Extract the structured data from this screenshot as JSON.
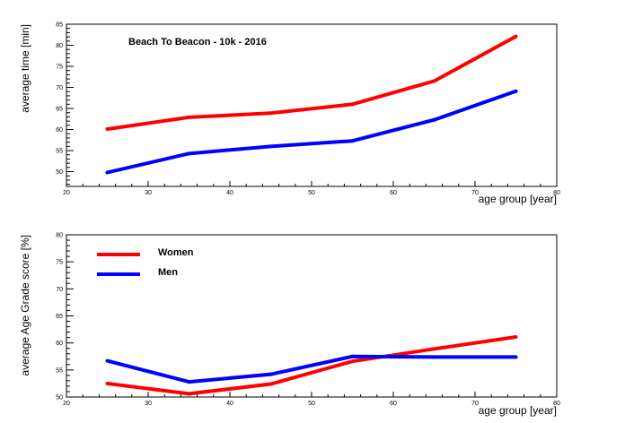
{
  "chart_data": [
    {
      "type": "line",
      "title": "Beach To Beacon - 10k - 2016",
      "xlabel": "age group [year]",
      "ylabel": "average time [min]",
      "xlim": [
        20,
        80
      ],
      "ylim": [
        46.5,
        85
      ],
      "xticks": [
        20,
        30,
        40,
        50,
        60,
        70,
        80
      ],
      "yticks": [
        50,
        55,
        60,
        65,
        70,
        75,
        80,
        85
      ],
      "x": [
        25,
        35,
        45,
        55,
        65,
        75
      ],
      "series": [
        {
          "values": [
            60.1,
            62.9,
            63.9,
            66.0,
            71.5,
            82.1
          ],
          "color": "#ff0000"
        },
        {
          "values": [
            49.8,
            54.3,
            56.0,
            57.3,
            62.3,
            69.1
          ],
          "color": "#0000ff"
        }
      ],
      "grid": false
    },
    {
      "type": "line",
      "title": "",
      "xlabel": "age group [year]",
      "ylabel": "average Age Grade score [%]",
      "xlim": [
        20,
        80
      ],
      "ylim": [
        50,
        80
      ],
      "xticks": [
        20,
        30,
        40,
        50,
        60,
        70,
        80
      ],
      "yticks": [
        50,
        55,
        60,
        65,
        70,
        75,
        80
      ],
      "x": [
        25,
        35,
        45,
        55,
        65,
        75
      ],
      "series": [
        {
          "name": "Women",
          "values": [
            52.5,
            50.6,
            52.4,
            56.6,
            58.9,
            61.1
          ],
          "color": "#ff0000"
        },
        {
          "name": "Men",
          "values": [
            56.7,
            52.8,
            54.2,
            57.5,
            57.4,
            57.4
          ],
          "color": "#0000ff"
        }
      ],
      "legend": "top-left",
      "grid": false
    }
  ]
}
